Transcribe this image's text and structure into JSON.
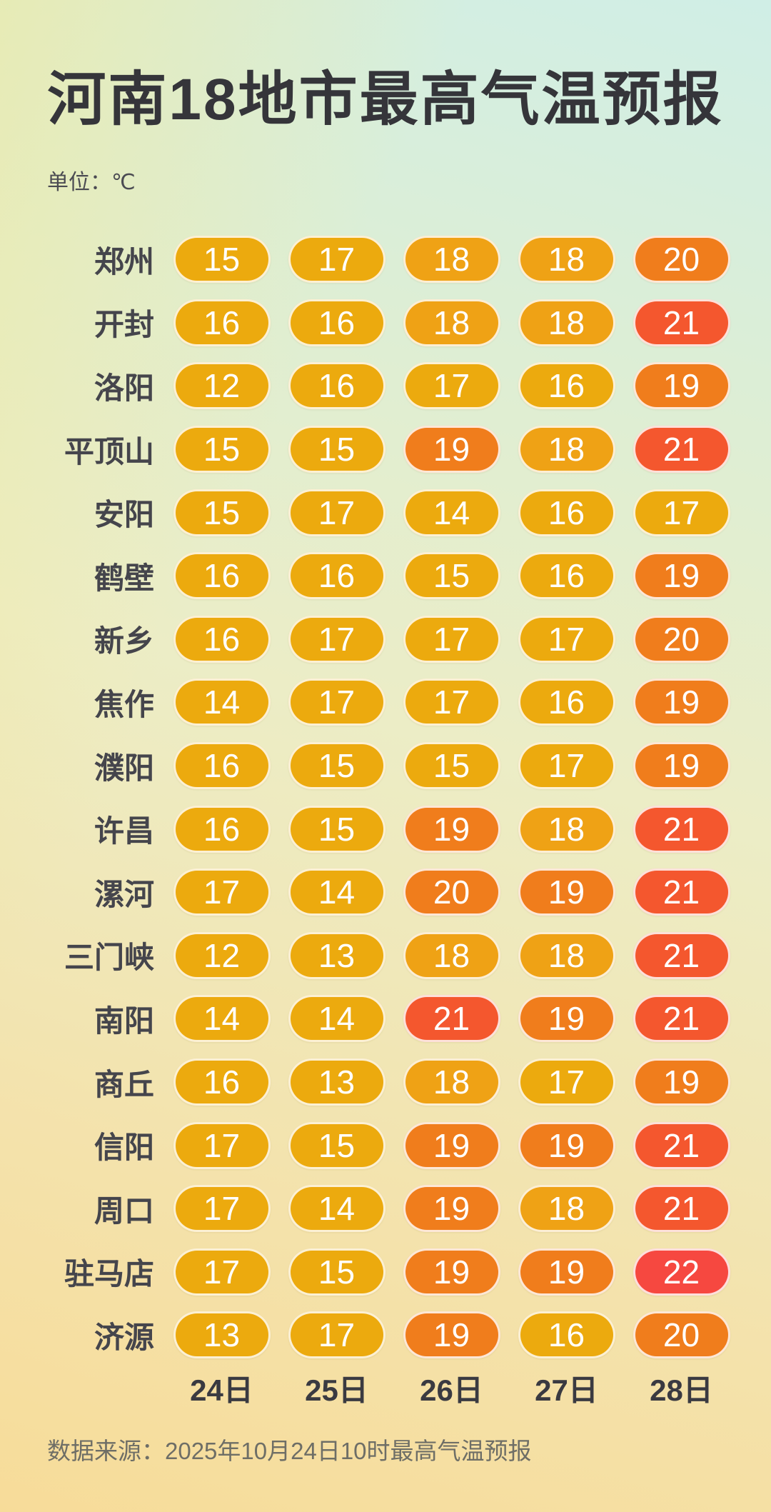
{
  "title": "河南18地市最高气温预报",
  "unit_label": "单位：℃",
  "footer": {
    "source": "数据来源：2025年10月24日10时最高气温预报"
  },
  "colors": {
    "title_text": "#35353a",
    "city_label_text": "#45454c",
    "axis_label_text": "#3a3a41",
    "source_text": "#6e6e66",
    "pill_text": "#ffffff",
    "pill_border": "rgba(255,255,255,0.82)",
    "background_mint": "#d0eee6",
    "background_yellow": "#f7dc99"
  },
  "chart_data": {
    "type": "heatmap",
    "title": "河南18地市最高气温预报",
    "unit": "℃",
    "x_categories": [
      "24日",
      "25日",
      "26日",
      "27日",
      "28日"
    ],
    "rows": [
      {
        "city": "郑州",
        "values": [
          15,
          17,
          18,
          18,
          20
        ]
      },
      {
        "city": "开封",
        "values": [
          16,
          16,
          18,
          18,
          21
        ]
      },
      {
        "city": "洛阳",
        "values": [
          12,
          16,
          17,
          16,
          19
        ]
      },
      {
        "city": "平顶山",
        "values": [
          15,
          15,
          19,
          18,
          21
        ]
      },
      {
        "city": "安阳",
        "values": [
          15,
          17,
          14,
          16,
          17
        ]
      },
      {
        "city": "鹤壁",
        "values": [
          16,
          16,
          15,
          16,
          19
        ]
      },
      {
        "city": "新乡",
        "values": [
          16,
          17,
          17,
          17,
          20
        ]
      },
      {
        "city": "焦作",
        "values": [
          14,
          17,
          17,
          16,
          19
        ]
      },
      {
        "city": "濮阳",
        "values": [
          16,
          15,
          15,
          17,
          19
        ]
      },
      {
        "city": "许昌",
        "values": [
          16,
          15,
          19,
          18,
          21
        ]
      },
      {
        "city": "漯河",
        "values": [
          17,
          14,
          20,
          19,
          21
        ]
      },
      {
        "city": "三门峡",
        "values": [
          12,
          13,
          18,
          18,
          21
        ]
      },
      {
        "city": "南阳",
        "values": [
          14,
          14,
          21,
          19,
          21
        ]
      },
      {
        "city": "商丘",
        "values": [
          16,
          13,
          18,
          17,
          19
        ]
      },
      {
        "city": "信阳",
        "values": [
          17,
          15,
          19,
          19,
          21
        ]
      },
      {
        "city": "周口",
        "values": [
          17,
          14,
          19,
          18,
          21
        ]
      },
      {
        "city": "驻马店",
        "values": [
          17,
          15,
          19,
          19,
          22
        ]
      },
      {
        "city": "济源",
        "values": [
          13,
          17,
          19,
          16,
          20
        ]
      }
    ],
    "color_scale": [
      {
        "max": 17,
        "color": "#ecaa0e"
      },
      {
        "max": 18,
        "color": "#efa215"
      },
      {
        "max": 20,
        "color": "#f07d1c"
      },
      {
        "max": 21,
        "color": "#f4572e"
      },
      {
        "max": 22,
        "color": "#f64840"
      }
    ],
    "legend_position": "none",
    "grid": false
  }
}
